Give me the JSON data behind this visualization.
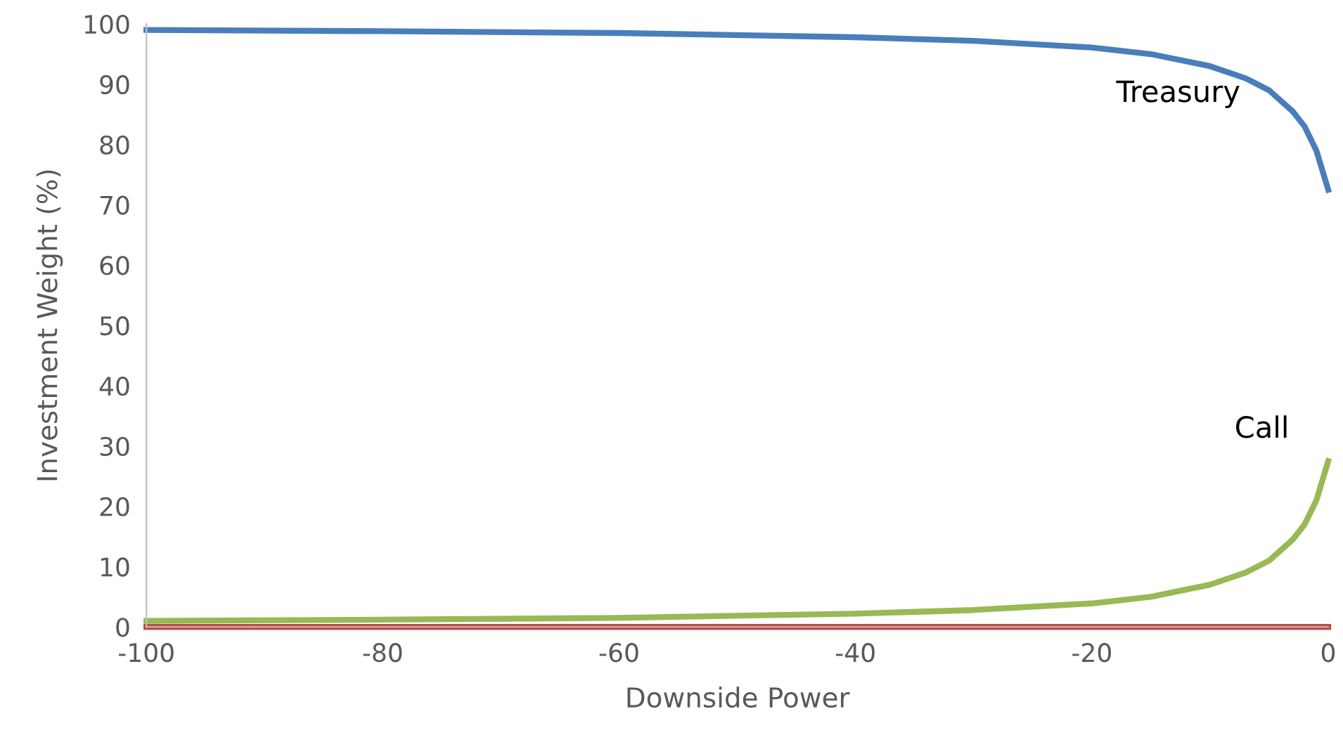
{
  "chart_data": {
    "type": "line",
    "xlabel": "Downside Power",
    "ylabel": "Investment Weight (%)",
    "x": [
      -100,
      -80,
      -60,
      -40,
      -30,
      -20,
      -15,
      -10,
      -7,
      -5,
      -3,
      -2,
      -1,
      0
    ],
    "series": [
      {
        "name": "Treasury",
        "color": "#4a7ebb",
        "values": [
          99,
          98.8,
          98.5,
          97.8,
          97.2,
          96.1,
          95,
          93,
          91,
          89,
          85.5,
          83,
          79,
          72.5
        ]
      },
      {
        "name": "Call",
        "color": "#98b954",
        "values": [
          1,
          1.2,
          1.5,
          2.2,
          2.8,
          3.9,
          5,
          7,
          9,
          11,
          14.5,
          17,
          21,
          27.5
        ]
      },
      {
        "color": "#be4b48",
        "values": [
          0,
          0,
          0,
          0,
          0,
          0,
          0,
          0,
          0,
          0,
          0,
          0,
          0,
          0
        ]
      }
    ],
    "xlim": [
      -100,
      0
    ],
    "xticks": [
      -100,
      -80,
      -60,
      -40,
      -20,
      0
    ],
    "ylim": [
      0,
      100
    ],
    "yticks": [
      0,
      10,
      20,
      30,
      40,
      50,
      60,
      70,
      80,
      90,
      100
    ],
    "grid": false,
    "legend": false,
    "marker": "none",
    "line_style": "solid"
  }
}
